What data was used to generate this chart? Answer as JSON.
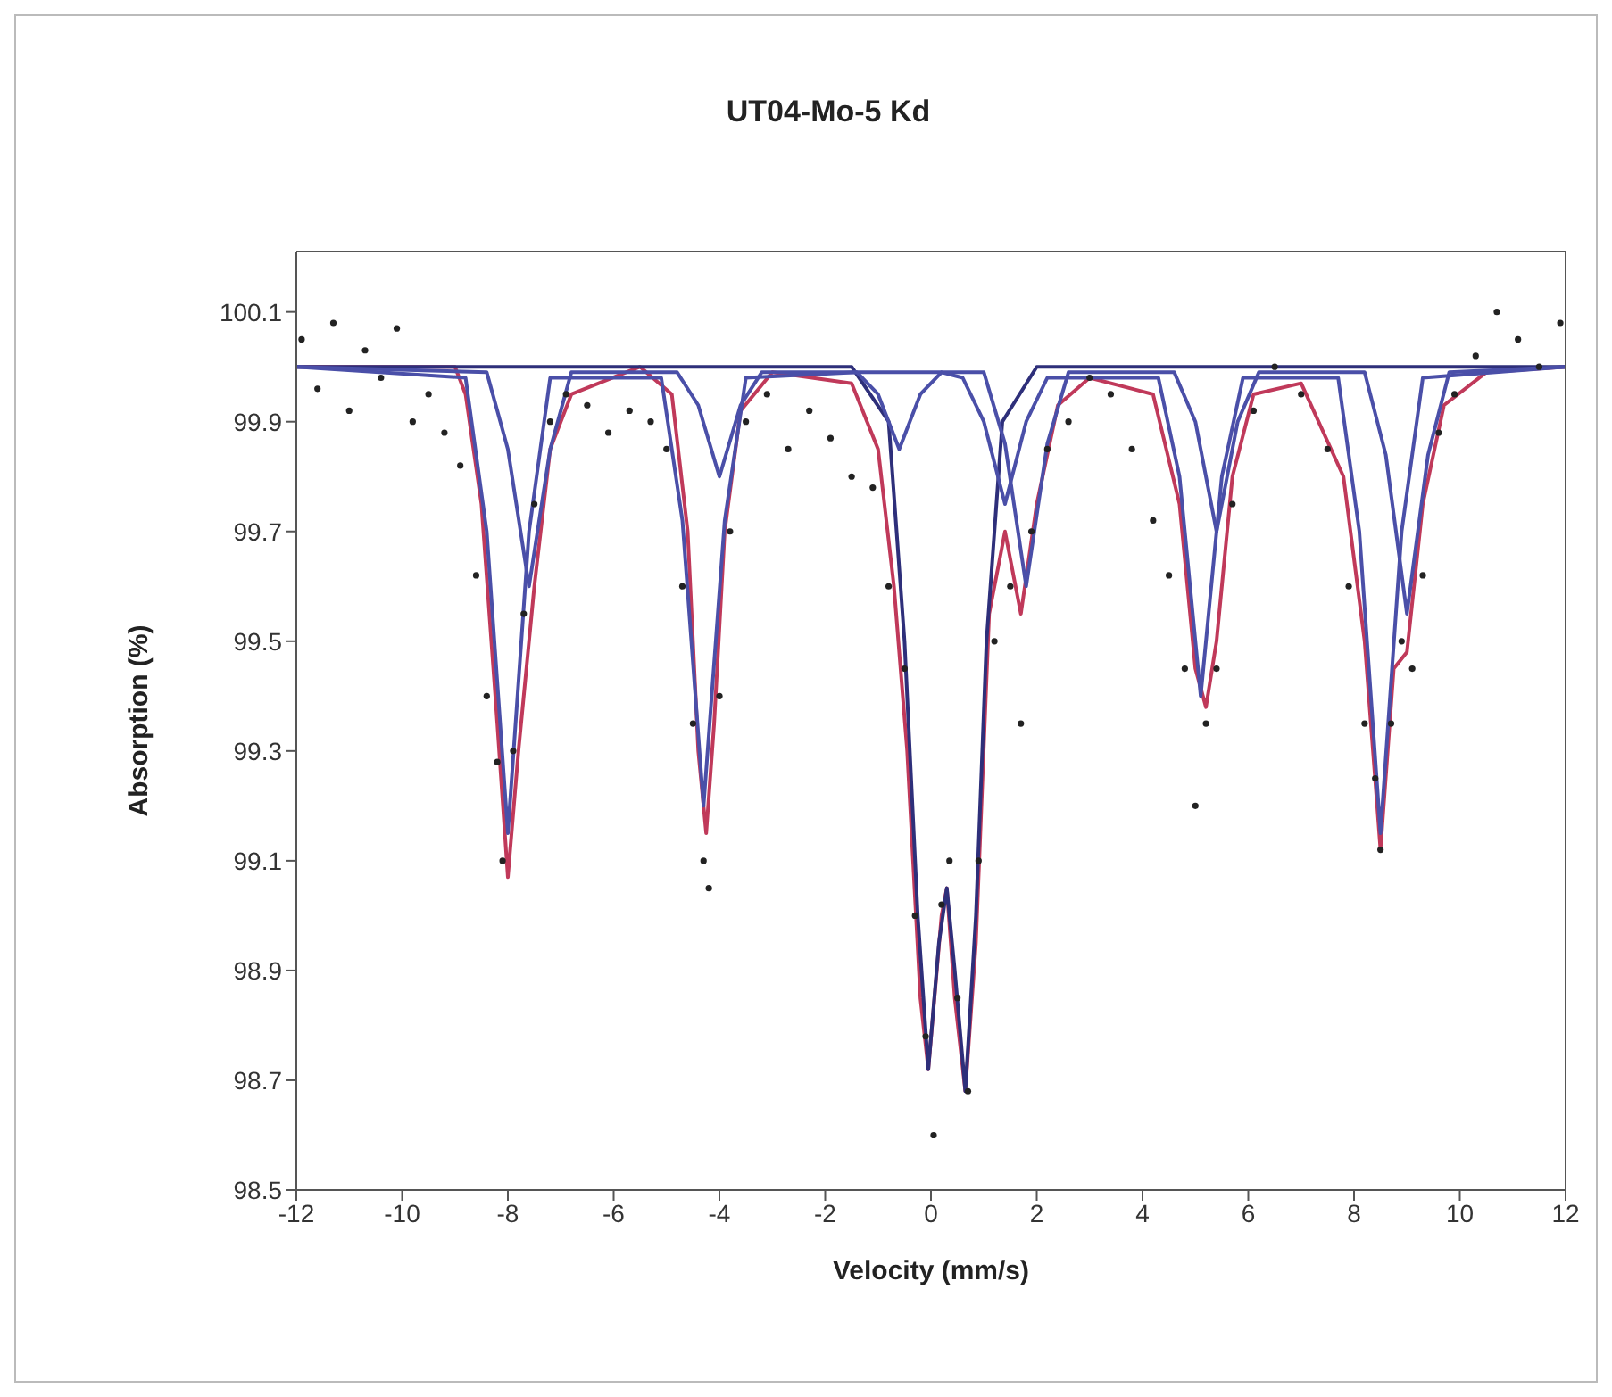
{
  "chart_data": {
    "type": "line",
    "title": "UT04-Mo-5 Kd",
    "xlabel": "Velocity (mm/s)",
    "ylabel": "Absorption (%)",
    "xlim": [
      -12,
      12
    ],
    "xticks": [
      -12,
      -10,
      -8,
      -6,
      -4,
      -2,
      0,
      2,
      4,
      6,
      8,
      10,
      12
    ],
    "ylim": [
      98.5,
      100.21
    ],
    "yticks": [
      98.5,
      98.7,
      98.9,
      99.1,
      99.3,
      99.5,
      99.7,
      99.9,
      100.1
    ],
    "marker": "none",
    "line_style": "solid",
    "series": [
      {
        "type": "scatter",
        "color": "#222222",
        "marker": "circle",
        "x": [
          -11.9,
          -11.6,
          -11.3,
          -11.0,
          -10.7,
          -10.4,
          -10.1,
          -9.8,
          -9.5,
          -9.2,
          -8.9,
          -8.6,
          -8.4,
          -8.2,
          -8.1,
          -7.9,
          -7.7,
          -7.5,
          -7.2,
          -6.9,
          -6.5,
          -6.1,
          -5.7,
          -5.3,
          -5.0,
          -4.7,
          -4.5,
          -4.3,
          -4.2,
          -4.0,
          -3.8,
          -3.5,
          -3.1,
          -2.7,
          -2.3,
          -1.9,
          -1.5,
          -1.1,
          -0.8,
          -0.5,
          -0.3,
          -0.1,
          0.05,
          0.2,
          0.35,
          0.5,
          0.7,
          0.9,
          1.2,
          1.5,
          1.7,
          1.9,
          2.2,
          2.6,
          3.0,
          3.4,
          3.8,
          4.2,
          4.5,
          4.8,
          5.0,
          5.2,
          5.4,
          5.7,
          6.1,
          6.5,
          7.0,
          7.5,
          7.9,
          8.2,
          8.4,
          8.5,
          8.7,
          8.9,
          9.1,
          9.3,
          9.6,
          9.9,
          10.3,
          10.7,
          11.1,
          11.5,
          11.9
        ],
        "values": [
          100.05,
          99.96,
          100.08,
          99.92,
          100.03,
          99.98,
          100.07,
          99.9,
          99.95,
          99.88,
          99.82,
          99.62,
          99.4,
          99.28,
          99.1,
          99.3,
          99.55,
          99.75,
          99.9,
          99.95,
          99.93,
          99.88,
          99.92,
          99.9,
          99.85,
          99.6,
          99.35,
          99.1,
          99.05,
          99.4,
          99.7,
          99.9,
          99.95,
          99.85,
          99.92,
          99.87,
          99.8,
          99.78,
          99.6,
          99.45,
          99.0,
          98.78,
          98.6,
          99.02,
          99.1,
          98.85,
          98.68,
          99.1,
          99.5,
          99.6,
          99.35,
          99.7,
          99.85,
          99.9,
          99.98,
          99.95,
          99.85,
          99.72,
          99.62,
          99.45,
          99.2,
          99.35,
          99.45,
          99.75,
          99.92,
          100.0,
          99.95,
          99.85,
          99.6,
          99.35,
          99.25,
          99.12,
          99.35,
          99.5,
          99.45,
          99.62,
          99.88,
          99.95,
          100.02,
          100.1,
          100.05,
          100.0,
          100.08
        ]
      },
      {
        "color": "#c0395a",
        "x": [
          -12,
          -9,
          -8.8,
          -8.5,
          -8.2,
          -8.0,
          -7.8,
          -7.5,
          -7.2,
          -6.8,
          -5.5,
          -4.9,
          -4.6,
          -4.4,
          -4.25,
          -4.1,
          -3.9,
          -3.6,
          -3.0,
          -1.5,
          -1.0,
          -0.7,
          -0.45,
          -0.2,
          -0.05,
          0.2,
          0.3,
          0.45,
          0.65,
          0.85,
          1.1,
          1.4,
          1.7,
          2.0,
          2.4,
          3.0,
          4.2,
          4.7,
          5.0,
          5.2,
          5.4,
          5.7,
          6.1,
          7.0,
          7.8,
          8.2,
          8.5,
          8.75,
          9.0,
          9.3,
          9.7,
          10.5,
          12
        ],
        "values": [
          100.0,
          100.0,
          99.95,
          99.75,
          99.35,
          99.07,
          99.3,
          99.6,
          99.85,
          99.95,
          100.0,
          99.95,
          99.7,
          99.3,
          99.15,
          99.35,
          99.7,
          99.92,
          99.99,
          99.97,
          99.85,
          99.6,
          99.3,
          98.85,
          98.72,
          99.0,
          99.05,
          98.85,
          98.68,
          98.95,
          99.55,
          99.7,
          99.55,
          99.75,
          99.93,
          99.98,
          99.95,
          99.75,
          99.45,
          99.38,
          99.5,
          99.8,
          99.95,
          99.97,
          99.8,
          99.5,
          99.12,
          99.45,
          99.48,
          99.75,
          99.93,
          99.99,
          100.0
        ]
      },
      {
        "color": "#2e2f7a",
        "x": [
          -12,
          -1.5,
          -0.8,
          -0.5,
          -0.25,
          -0.05,
          0.15,
          0.3,
          0.45,
          0.65,
          0.85,
          1.05,
          1.35,
          2.0,
          12
        ],
        "values": [
          100.0,
          100.0,
          99.9,
          99.5,
          99.0,
          98.72,
          98.95,
          99.05,
          98.9,
          98.68,
          99.0,
          99.5,
          99.9,
          100.0,
          100.0
        ]
      },
      {
        "color": "#4a4fa8",
        "x": [
          -12,
          -8.8,
          -8.4,
          -8.0,
          -7.6,
          -7.2,
          -5.1,
          -4.7,
          -4.3,
          -3.9,
          -3.5,
          -1.4,
          -1.0,
          -0.6,
          -0.2,
          0.2,
          0.6,
          1.0,
          1.4,
          1.8,
          2.2,
          4.3,
          4.7,
          5.1,
          5.5,
          5.9,
          7.7,
          8.1,
          8.5,
          8.9,
          9.3,
          12
        ],
        "values": [
          100.0,
          99.98,
          99.7,
          99.15,
          99.7,
          99.98,
          99.98,
          99.72,
          99.2,
          99.72,
          99.98,
          99.99,
          99.95,
          99.85,
          99.95,
          99.99,
          99.98,
          99.9,
          99.75,
          99.9,
          99.98,
          99.98,
          99.8,
          99.4,
          99.8,
          99.98,
          99.98,
          99.7,
          99.15,
          99.7,
          99.98,
          100.0
        ]
      },
      {
        "color": "#4a4fa8",
        "x": [
          -12,
          -8.4,
          -8.0,
          -7.6,
          -7.2,
          -6.8,
          -4.8,
          -4.4,
          -4.0,
          -3.6,
          -3.2,
          1.0,
          1.4,
          1.8,
          2.2,
          2.6,
          4.6,
          5.0,
          5.4,
          5.8,
          6.2,
          8.2,
          8.6,
          9.0,
          9.4,
          9.8,
          12
        ],
        "values": [
          100.0,
          99.99,
          99.85,
          99.6,
          99.85,
          99.99,
          99.99,
          99.93,
          99.8,
          99.93,
          99.99,
          99.99,
          99.86,
          99.6,
          99.86,
          99.99,
          99.99,
          99.9,
          99.7,
          99.9,
          99.99,
          99.99,
          99.84,
          99.55,
          99.84,
          99.99,
          100.0
        ]
      }
    ]
  }
}
